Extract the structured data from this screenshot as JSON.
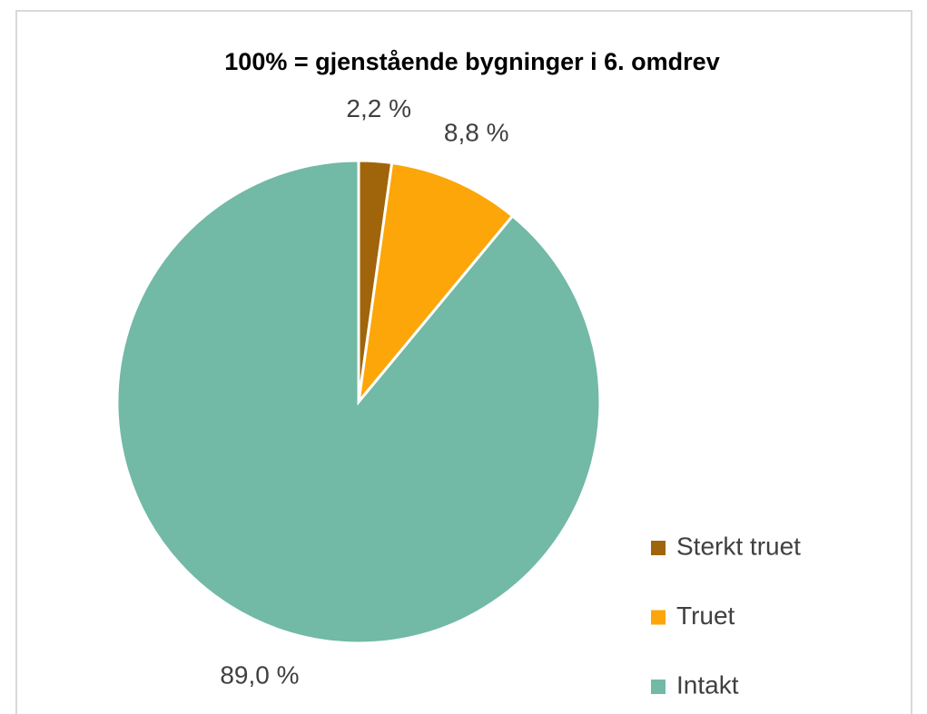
{
  "chart_data": {
    "type": "pie",
    "title": "100% = gjenstående bygninger i 6. omdrev",
    "categories": [
      "Sterkt truet",
      "Truet",
      "Intakt"
    ],
    "values": [
      2.2,
      8.8,
      89.0
    ],
    "value_labels": [
      "2,2 %",
      "8,8 %",
      "89,0 %"
    ],
    "colors": [
      "#a0650a",
      "#fca60a",
      "#72b9a6"
    ],
    "legend": "right"
  }
}
